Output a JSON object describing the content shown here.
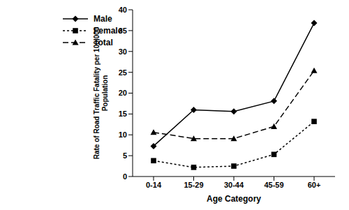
{
  "chart_data": {
    "type": "line",
    "x_label": "Age Category",
    "y_label": "Rate of Road Traffic Fatality per 100,000 Population",
    "categories": [
      "0-14",
      "15-29",
      "30-44",
      "45-59",
      "60+"
    ],
    "series": [
      {
        "name": "Male",
        "color": "#000000",
        "marker": "diamond",
        "line_style": "solid",
        "values": [
          7.3,
          16.0,
          15.6,
          18.1,
          36.8
        ]
      },
      {
        "name": "Female",
        "color": "#000000",
        "marker": "square",
        "line_style": "dotted",
        "values": [
          3.8,
          2.2,
          2.5,
          5.3,
          13.2
        ]
      },
      {
        "name": "Total",
        "color": "#000000",
        "marker": "triangle",
        "line_style": "dashed",
        "values": [
          10.6,
          9.1,
          9.1,
          12.0,
          25.4
        ]
      }
    ],
    "ylim": [
      0,
      40
    ],
    "yticks": [
      0,
      5,
      10,
      15,
      20,
      25,
      30,
      35,
      40
    ],
    "grid": false,
    "legend": "top-left"
  }
}
